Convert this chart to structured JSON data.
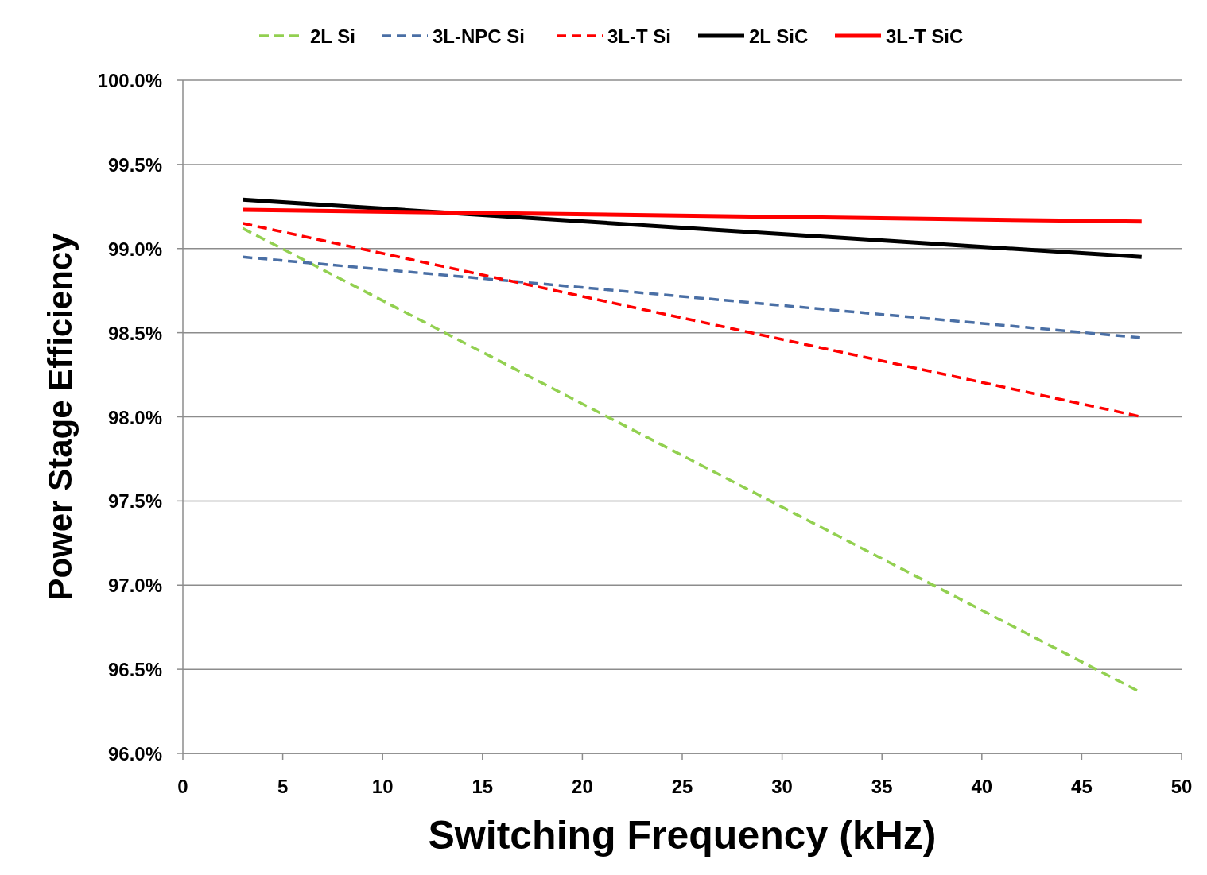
{
  "chart_data": {
    "type": "line",
    "xlabel": "Switching Frequency (kHz)",
    "ylabel": "Power Stage Efficiency",
    "xlim": [
      0,
      50
    ],
    "xticks": [
      0,
      5,
      10,
      15,
      20,
      25,
      30,
      35,
      40,
      45,
      50
    ],
    "ylim": [
      96,
      100
    ],
    "yticks": [
      {
        "value": 96,
        "label": "96.0%"
      },
      {
        "value": 96.5,
        "label": "96.5%"
      },
      {
        "value": 97,
        "label": "97.0%"
      },
      {
        "value": 97.5,
        "label": "97.5%"
      },
      {
        "value": 98,
        "label": "98.0%"
      },
      {
        "value": 98.5,
        "label": "98.5%"
      },
      {
        "value": 99,
        "label": "99.0%"
      },
      {
        "value": 99.5,
        "label": "99.5%"
      },
      {
        "value": 100,
        "label": "100.0%"
      }
    ],
    "grid": "y",
    "legend": "top",
    "marker": "none",
    "x": [
      3,
      48
    ],
    "series": [
      {
        "name": "2L Si",
        "color": "#92d050",
        "line_style": "dashed",
        "values": [
          99.12,
          96.36
        ]
      },
      {
        "name": "3L-NPC Si",
        "color": "#4a6fa5",
        "line_style": "dashed",
        "values": [
          98.95,
          98.47
        ]
      },
      {
        "name": "3L-T Si",
        "color": "#ff0000",
        "line_style": "dashed",
        "values": [
          99.15,
          98.0
        ]
      },
      {
        "name": "2L SiC",
        "color": "#000000",
        "line_style": "solid",
        "values": [
          99.29,
          98.95
        ]
      },
      {
        "name": "3L-T SiC",
        "color": "#ff0000",
        "line_style": "solid",
        "values": [
          99.23,
          99.16
        ]
      }
    ]
  }
}
